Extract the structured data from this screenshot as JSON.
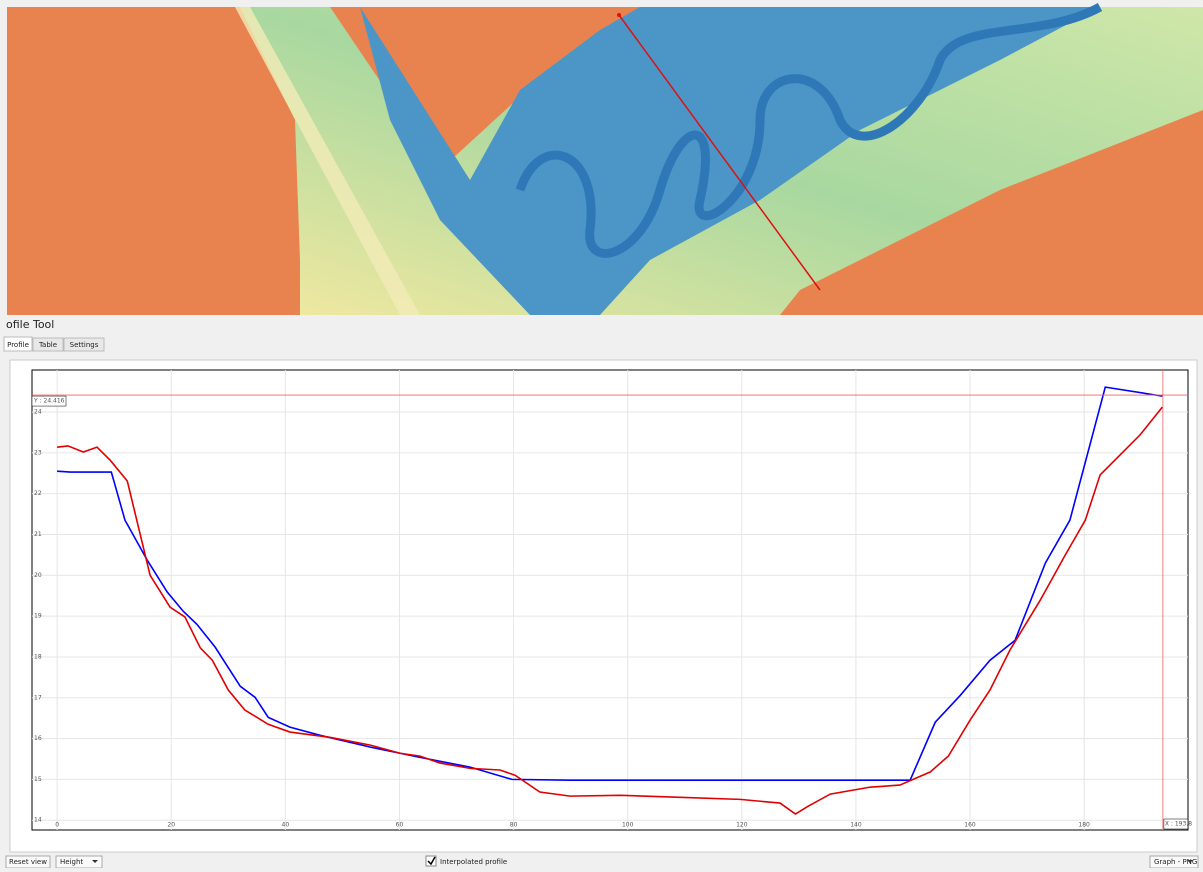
{
  "window": {
    "title": "ofile Tool",
    "tabs": [
      "Profile",
      "Table",
      "Settings"
    ],
    "buttons": {
      "reset": "Reset view",
      "mode": "Height",
      "interpolated": "Interpolated profile",
      "export": "Graph - PNG"
    }
  },
  "crosshair": {
    "x": 193.8,
    "y": 24.416,
    "x_label": "X : 193.8",
    "y_label": "Y : 24.416"
  },
  "chart_data": {
    "type": "line",
    "xlim": [
      -4.4,
      198.2
    ],
    "ylim": [
      13.76,
      25.03
    ],
    "xticks": [
      0,
      20,
      40,
      60,
      80,
      100,
      120,
      140,
      160,
      180
    ],
    "yticks": [
      14,
      15,
      16,
      17,
      18,
      19,
      20,
      21,
      22,
      23,
      24
    ],
    "grid": true,
    "series": [
      {
        "color": "#0000ff",
        "x": [
          0,
          2.3,
          9.5,
          11.9,
          15.8,
          19.3,
          22.1,
          24.5,
          27.7,
          32.1,
          34.7,
          37.0,
          40.8,
          46.1,
          54.9,
          63.6,
          72.4,
          79.7,
          89.9,
          149.5,
          153.9,
          158.3,
          163.5,
          167.9,
          173.2,
          177.5,
          183.7,
          193.7
        ],
        "values": [
          22.55,
          22.53,
          22.53,
          21.35,
          20.37,
          19.59,
          19.12,
          18.8,
          18.24,
          17.28,
          17.01,
          16.52,
          16.28,
          16.08,
          15.79,
          15.54,
          15.3,
          15.0,
          14.98,
          14.98,
          16.4,
          17.06,
          17.92,
          18.41,
          20.3,
          21.35,
          24.61,
          24.39
        ]
      },
      {
        "color": "#e00000",
        "x": [
          0,
          1.9,
          4.6,
          7,
          9.3,
          12.3,
          16.3,
          19.8,
          22.4,
          25.1,
          27.2,
          30,
          32.9,
          37,
          40.8,
          47.8,
          54.9,
          60.1,
          63.6,
          67.1,
          72.4,
          77.6,
          80.3,
          84.6,
          89.9,
          98.7,
          109.2,
          119.7,
          126.7,
          129.4,
          131.6,
          135.5,
          142.5,
          147.7,
          153,
          156.2,
          160,
          163.5,
          167,
          172.3,
          176.7,
          180.2,
          182.8,
          186.3,
          189.8,
          193.7
        ],
        "values": [
          23.14,
          23.17,
          23.02,
          23.14,
          22.82,
          22.31,
          20.0,
          19.22,
          18.98,
          18.22,
          17.92,
          17.19,
          16.7,
          16.35,
          16.16,
          16.03,
          15.84,
          15.64,
          15.57,
          15.4,
          15.27,
          15.23,
          15.1,
          14.69,
          14.59,
          14.61,
          14.56,
          14.51,
          14.42,
          14.15,
          14.34,
          14.64,
          14.81,
          14.86,
          15.18,
          15.57,
          16.45,
          17.19,
          18.17,
          19.39,
          20.5,
          21.35,
          22.46,
          22.95,
          23.44,
          24.12
        ]
      }
    ]
  }
}
